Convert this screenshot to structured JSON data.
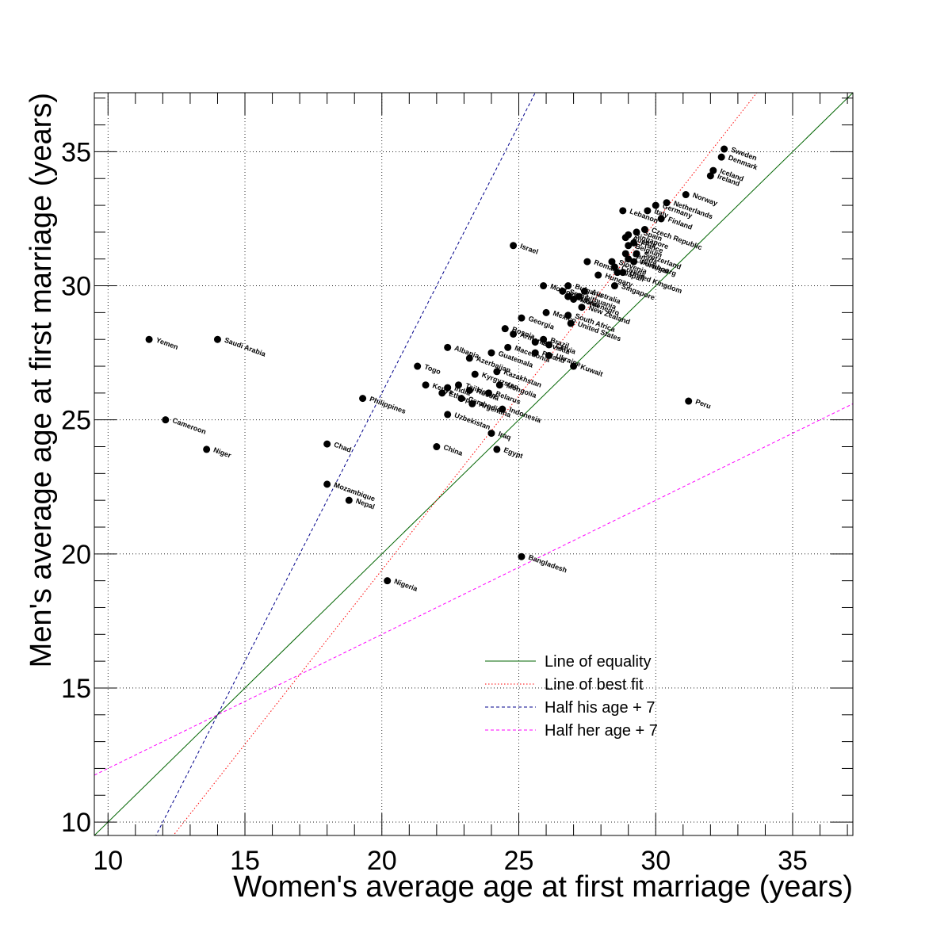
{
  "chart_data": {
    "type": "scatter",
    "xlabel": "Women's average age at first marriage (years)",
    "ylabel": "Men's average age at first marriage (years)",
    "xlim": [
      9.5,
      37.2
    ],
    "ylim": [
      9.5,
      37.2
    ],
    "x_ticks": [
      10,
      15,
      20,
      25,
      30,
      35
    ],
    "y_ticks": [
      10,
      15,
      20,
      25,
      30,
      35
    ],
    "grid": true,
    "legend_position": "bottom-right",
    "marker_color": "#000000",
    "lines": [
      {
        "name": "Line of equality",
        "color": "#006400",
        "dash": "solid",
        "slope": 1,
        "intercept": 0
      },
      {
        "name": "Line of best fit",
        "color": "#ff0000",
        "dash": "dotted",
        "slope": 1.3,
        "intercept": -6.6
      },
      {
        "name": "Half his age + 7",
        "color": "#00008b",
        "dash": "dashed",
        "slope": 2,
        "intercept": -14
      },
      {
        "name": "Half her age + 7",
        "color": "#ff00ff",
        "dash": "dashed",
        "slope": 0.5,
        "intercept": 7
      }
    ],
    "points": [
      {
        "label": "Sweden",
        "x": 32.5,
        "y": 35.1
      },
      {
        "label": "Denmark",
        "x": 32.4,
        "y": 34.8
      },
      {
        "label": "Iceland",
        "x": 32.1,
        "y": 34.3
      },
      {
        "label": "Ireland",
        "x": 32.0,
        "y": 34.1
      },
      {
        "label": "Norway",
        "x": 31.1,
        "y": 33.4
      },
      {
        "label": "Netherlands",
        "x": 30.4,
        "y": 33.1
      },
      {
        "label": "Germany",
        "x": 30.0,
        "y": 33.0
      },
      {
        "label": "Italy",
        "x": 29.7,
        "y": 32.8
      },
      {
        "label": "Finland",
        "x": 30.2,
        "y": 32.5
      },
      {
        "label": "Lebanon",
        "x": 28.8,
        "y": 32.8
      },
      {
        "label": "Czech Republic",
        "x": 29.6,
        "y": 32.1
      },
      {
        "label": "Spain",
        "x": 29.3,
        "y": 32.0
      },
      {
        "label": "Singapore",
        "x": 29.0,
        "y": 31.9
      },
      {
        "label": "France",
        "x": 29.2,
        "y": 31.6
      },
      {
        "label": "Austria",
        "x": 28.9,
        "y": 31.8
      },
      {
        "label": "Belgium",
        "x": 29.0,
        "y": 31.5
      },
      {
        "label": "Switzerland",
        "x": 29.3,
        "y": 31.2
      },
      {
        "label": "Luxembourg",
        "x": 29.0,
        "y": 31.0
      },
      {
        "label": "Canada",
        "x": 28.9,
        "y": 31.2
      },
      {
        "label": "Portugal",
        "x": 29.2,
        "y": 30.9
      },
      {
        "label": "Israel",
        "x": 24.8,
        "y": 31.5
      },
      {
        "label": "Romania",
        "x": 27.5,
        "y": 30.9
      },
      {
        "label": "Slovenia",
        "x": 28.4,
        "y": 30.9
      },
      {
        "label": "Croatia",
        "x": 28.5,
        "y": 30.7
      },
      {
        "label": "Hungary",
        "x": 27.9,
        "y": 30.4
      },
      {
        "label": "United Kingdom",
        "x": 28.8,
        "y": 30.5
      },
      {
        "label": "Japan",
        "x": 28.6,
        "y": 30.5
      },
      {
        "label": "Bulgaria",
        "x": 26.8,
        "y": 30.0
      },
      {
        "label": "Australia",
        "x": 27.4,
        "y": 29.8
      },
      {
        "label": "Singapore",
        "x": 28.5,
        "y": 30.0
      },
      {
        "label": "Moldova",
        "x": 25.9,
        "y": 30.0
      },
      {
        "label": "Serbia",
        "x": 26.6,
        "y": 29.8
      },
      {
        "label": "Estonia",
        "x": 26.8,
        "y": 29.6
      },
      {
        "label": "Lithuania",
        "x": 27.2,
        "y": 29.6
      },
      {
        "label": "Montenegro",
        "x": 27.0,
        "y": 29.5
      },
      {
        "label": "New Zealand",
        "x": 27.3,
        "y": 29.2
      },
      {
        "label": "South Africa",
        "x": 26.8,
        "y": 28.9
      },
      {
        "label": "United States",
        "x": 26.9,
        "y": 28.6
      },
      {
        "label": "Mexico",
        "x": 26.0,
        "y": 29.0
      },
      {
        "label": "Georgia",
        "x": 25.1,
        "y": 28.8
      },
      {
        "label": "Bosnia",
        "x": 24.5,
        "y": 28.4
      },
      {
        "label": "Armenia",
        "x": 24.8,
        "y": 28.2
      },
      {
        "label": "Brazil",
        "x": 25.9,
        "y": 28.0
      },
      {
        "label": "Slovakia",
        "x": 25.6,
        "y": 27.9
      },
      {
        "label": "Latvia",
        "x": 26.1,
        "y": 27.8
      },
      {
        "label": "Albania",
        "x": 22.4,
        "y": 27.7
      },
      {
        "label": "Azerbaijan",
        "x": 23.2,
        "y": 27.3
      },
      {
        "label": "Macedonia",
        "x": 24.6,
        "y": 27.7
      },
      {
        "label": "Poland",
        "x": 25.6,
        "y": 27.5
      },
      {
        "label": "Guatemala",
        "x": 24.0,
        "y": 27.5
      },
      {
        "label": "Ukraine",
        "x": 26.1,
        "y": 27.4
      },
      {
        "label": "Kuwait",
        "x": 27.0,
        "y": 27.0
      },
      {
        "label": "Togo",
        "x": 21.3,
        "y": 27.0
      },
      {
        "label": "Kazakhstan",
        "x": 24.2,
        "y": 26.8
      },
      {
        "label": "Kyrgyzstan",
        "x": 23.4,
        "y": 26.7
      },
      {
        "label": "Mongolia",
        "x": 24.3,
        "y": 26.3
      },
      {
        "label": "Kenya",
        "x": 21.6,
        "y": 26.3
      },
      {
        "label": "Belarus",
        "x": 23.9,
        "y": 26.0
      },
      {
        "label": "India",
        "x": 22.4,
        "y": 26.2
      },
      {
        "label": "Russia",
        "x": 23.2,
        "y": 26.1
      },
      {
        "label": "Tajikistan",
        "x": 22.8,
        "y": 26.3
      },
      {
        "label": "Ethiopia",
        "x": 22.2,
        "y": 26.0
      },
      {
        "label": "Cambodia",
        "x": 22.9,
        "y": 25.8
      },
      {
        "label": "Argentina",
        "x": 23.3,
        "y": 25.6
      },
      {
        "label": "Indonesia",
        "x": 24.4,
        "y": 25.4
      },
      {
        "label": "Philippines",
        "x": 19.3,
        "y": 25.8
      },
      {
        "label": "Uzbekistan",
        "x": 22.4,
        "y": 25.2
      },
      {
        "label": "Iraq",
        "x": 24.0,
        "y": 24.5
      },
      {
        "label": "China",
        "x": 22.0,
        "y": 24.0
      },
      {
        "label": "Egypt",
        "x": 24.2,
        "y": 23.9
      },
      {
        "label": "Peru",
        "x": 31.2,
        "y": 25.7
      },
      {
        "label": "Yemen",
        "x": 11.5,
        "y": 28.0
      },
      {
        "label": "Saudi Arabia",
        "x": 14.0,
        "y": 28.0
      },
      {
        "label": "Cameroon",
        "x": 12.1,
        "y": 25.0
      },
      {
        "label": "Niger",
        "x": 13.6,
        "y": 23.9
      },
      {
        "label": "Chad",
        "x": 18.0,
        "y": 24.1
      },
      {
        "label": "Mozambique",
        "x": 18.0,
        "y": 22.6
      },
      {
        "label": "Nepal",
        "x": 18.8,
        "y": 22.0
      },
      {
        "label": "Nigeria",
        "x": 20.2,
        "y": 19.0
      },
      {
        "label": "Bangladesh",
        "x": 25.1,
        "y": 19.9
      }
    ]
  }
}
